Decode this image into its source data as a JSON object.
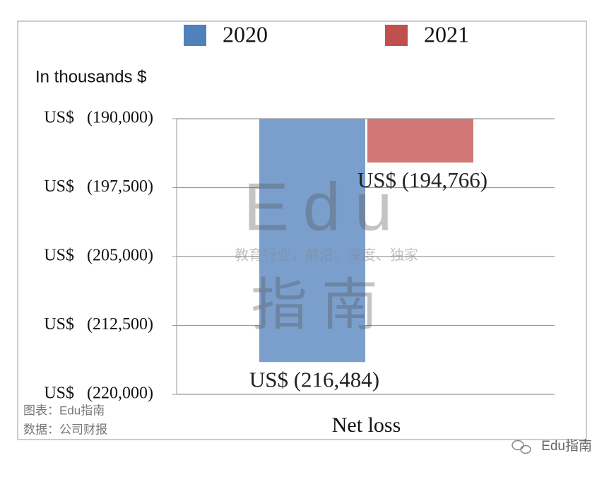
{
  "chart_data": {
    "type": "bar",
    "y_label": "In thousands $",
    "categories": [
      "Net loss"
    ],
    "series": [
      {
        "name": "2020",
        "color": "#7a9fcd",
        "values": [
          -216484
        ],
        "value_labels": [
          "US$ (216,484)"
        ]
      },
      {
        "name": "2021",
        "color": "#d17775",
        "values": [
          -194766
        ],
        "value_labels": [
          "US$ (194,766)"
        ]
      }
    ],
    "legend_colors": [
      "#4f81bd",
      "#c0504d"
    ],
    "ylim": [
      -220000,
      -190000
    ],
    "yticks": [
      {
        "value": -190000,
        "label": "US$   (190,000)"
      },
      {
        "value": -197500,
        "label": "US$   (197,500)"
      },
      {
        "value": -205000,
        "label": "US$   (205,000)"
      },
      {
        "value": -212500,
        "label": "US$   (212,500)"
      },
      {
        "value": -220000,
        "label": "US$   (220,000)"
      }
    ],
    "grid": true,
    "legend": "top"
  },
  "watermark": {
    "logo": "Edu",
    "slogan": "教育行业，前沿、深度、独家",
    "name": "指南"
  },
  "notes": {
    "chart_by": "图表：Edu指南",
    "source": "数据：公司财报",
    "account": "Edu指南"
  }
}
